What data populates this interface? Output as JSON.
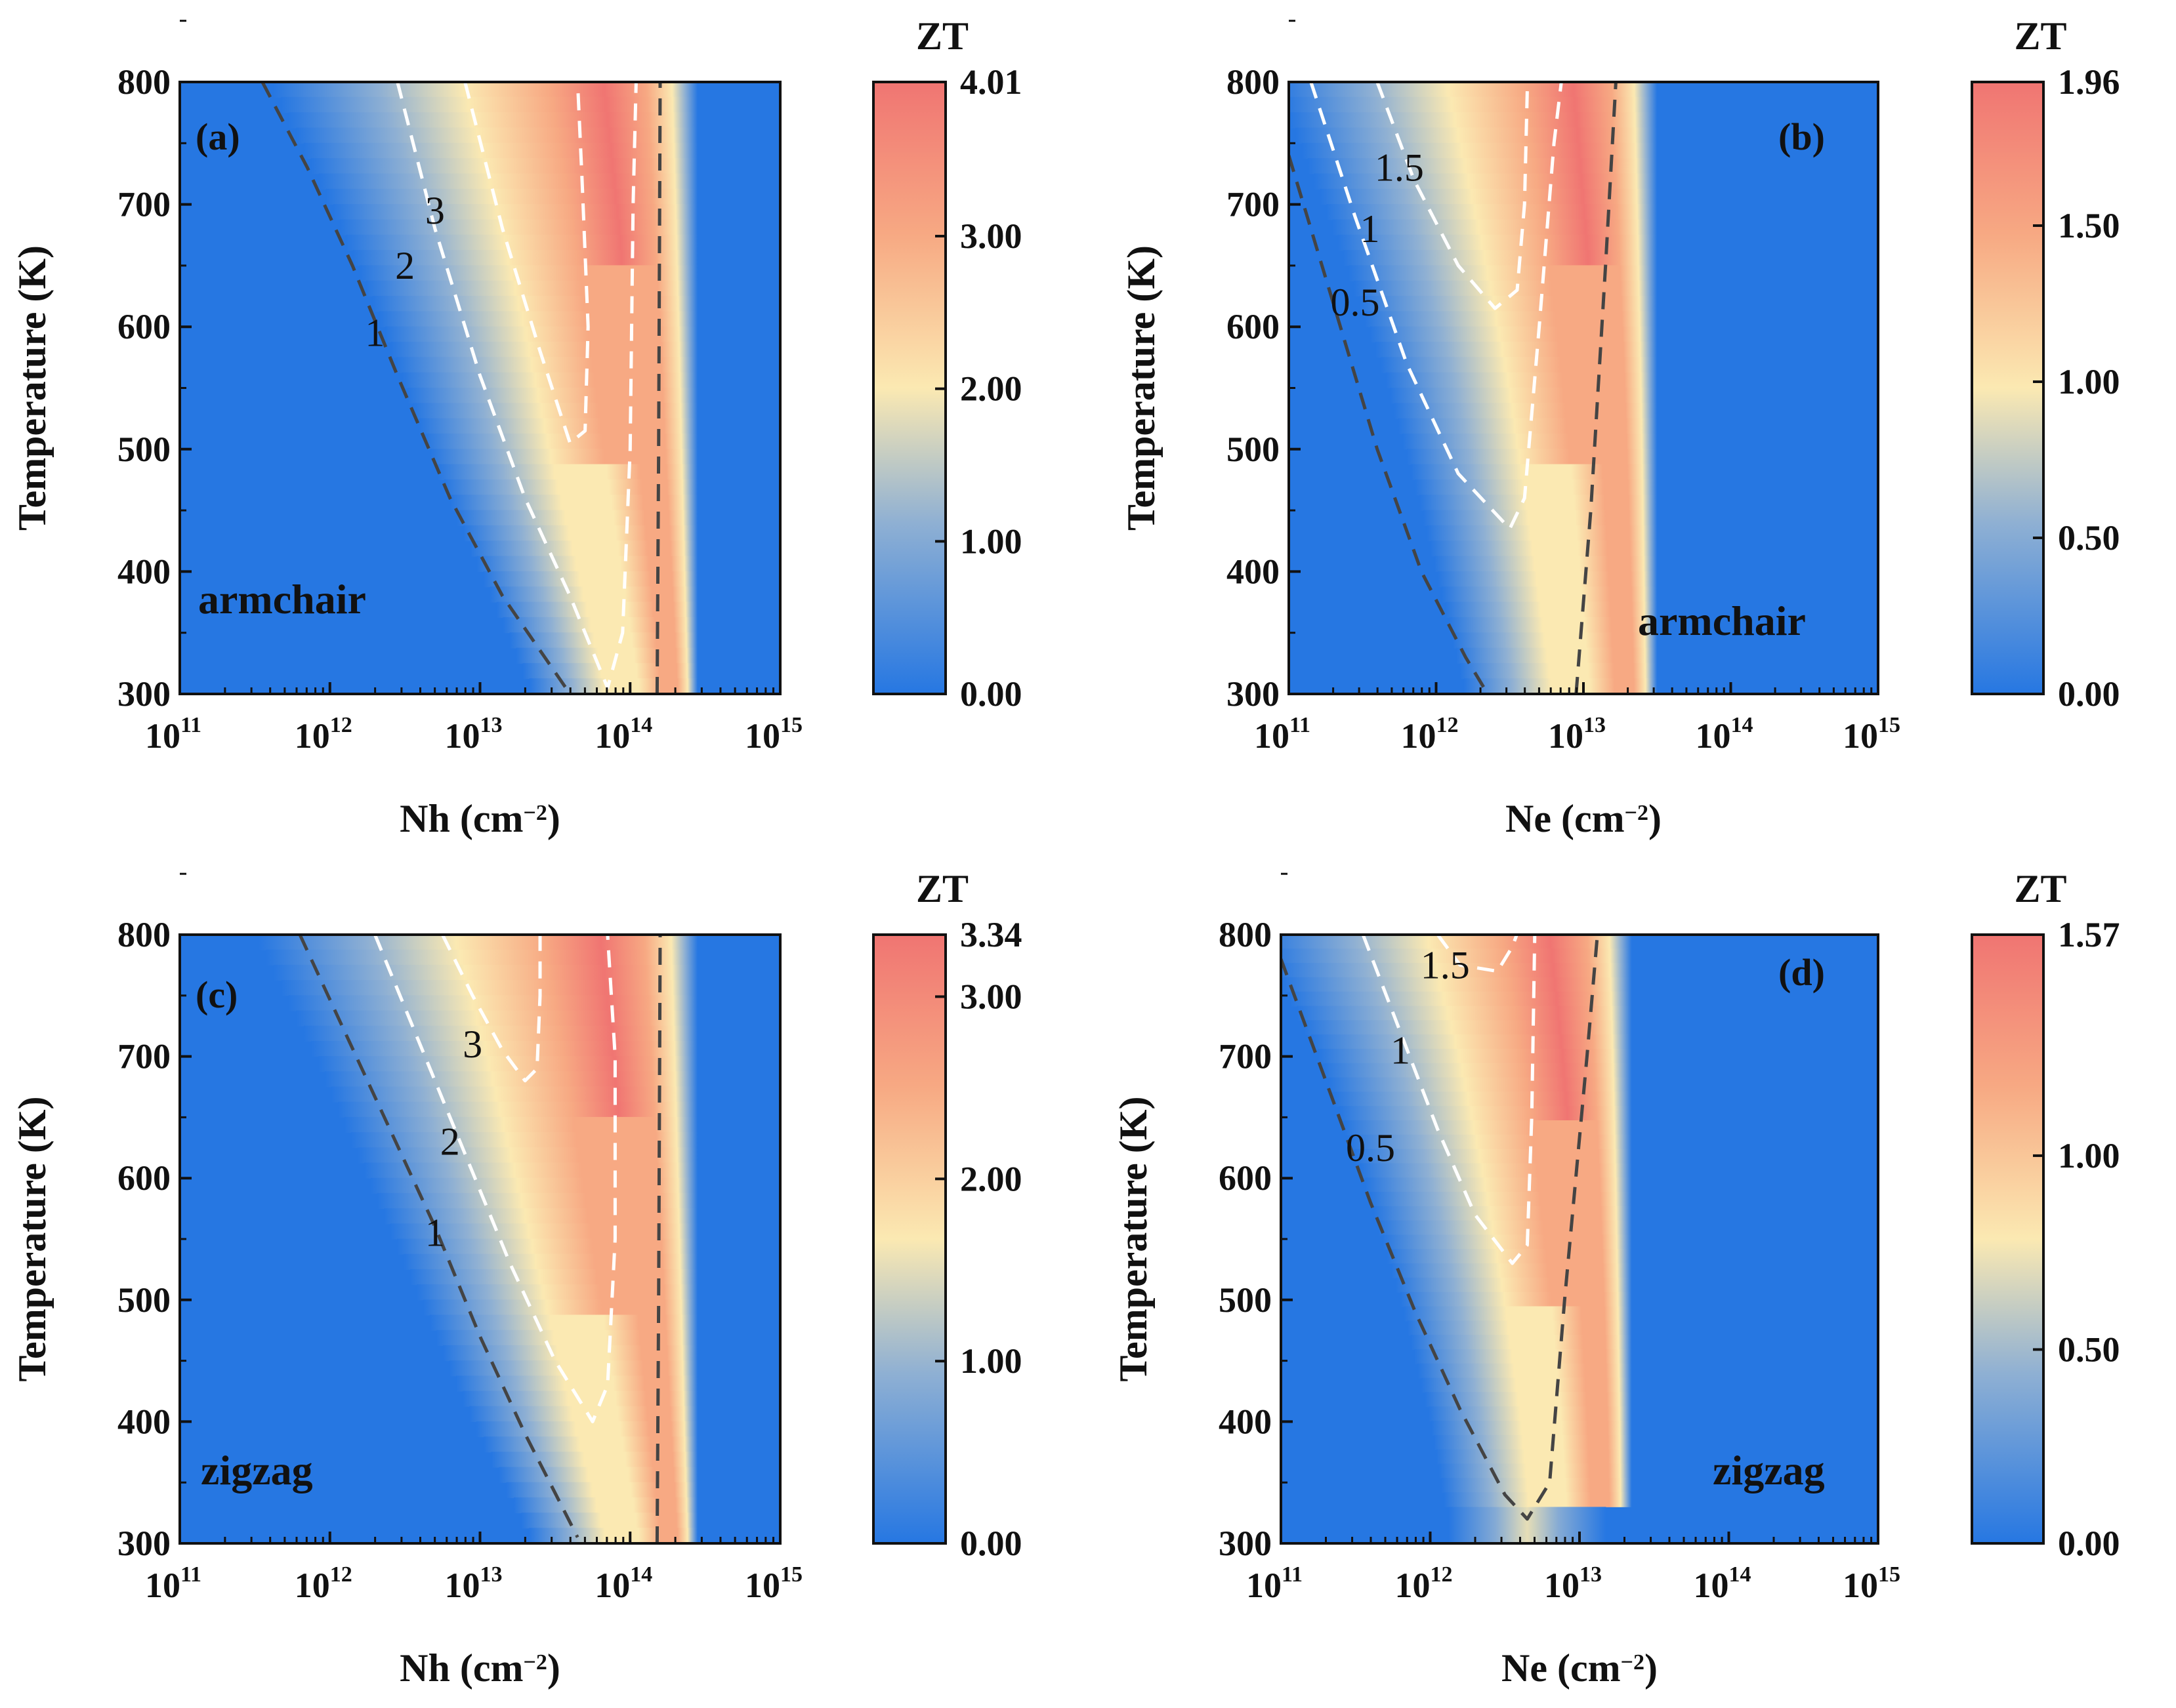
{
  "colors": {
    "low": "#2677e2",
    "low_mid": "#8fb0d3",
    "mid": "#fbe9b2",
    "high_mid": "#f7a983",
    "high": "#f07572",
    "dashed_dark": "#444444",
    "dashed_light": "#ffffff"
  },
  "chart_data": [
    {
      "id": "a",
      "type": "heatmap",
      "panel_label": "(a)",
      "orientation": "armchair",
      "xlabel": "Nh (cm⁻²)",
      "xlabel_base": "Nh (cm",
      "xlabel_sup": "−2",
      "xlabel_close": ")",
      "ylabel": "Temperature (K)",
      "x_scale": "log",
      "xlim": [
        100000000000.0,
        1000000000000000.0
      ],
      "x_ticks": [
        {
          "base": "10",
          "exp": "11"
        },
        {
          "base": "10",
          "exp": "12"
        },
        {
          "base": "10",
          "exp": "13"
        },
        {
          "base": "10",
          "exp": "14"
        },
        {
          "base": "10",
          "exp": "15"
        }
      ],
      "ylim": [
        300,
        800
      ],
      "y_ticks": [
        "300",
        "400",
        "500",
        "600",
        "700",
        "800"
      ],
      "colorbar": {
        "title": "ZT",
        "min": 0,
        "max": 4.01,
        "tick_values": [
          0,
          1,
          2,
          3,
          4.01
        ],
        "tick_labels": [
          "0.00",
          "1.00",
          "2.00",
          "3.00",
          "4.01"
        ]
      },
      "zt_max": 4.01,
      "contours": [
        {
          "level": "1",
          "style": "dark",
          "points": [
            [
              11.55,
              800
            ],
            [
              11.85,
              730
            ],
            [
              12.15,
              650
            ],
            [
              12.45,
              560
            ],
            [
              12.8,
              460
            ],
            [
              13.15,
              380
            ],
            [
              13.6,
              300
            ]
          ]
        },
        {
          "level": "2",
          "style": "light",
          "points": [
            [
              12.45,
              800
            ],
            [
              12.7,
              680
            ],
            [
              13.0,
              560
            ],
            [
              13.3,
              460
            ],
            [
              13.6,
              380
            ],
            [
              13.85,
              305
            ],
            [
              13.95,
              350
            ],
            [
              14.0,
              500
            ],
            [
              14.02,
              700
            ],
            [
              14.04,
              800
            ]
          ]
        },
        {
          "level": "3",
          "style": "light",
          "points": [
            [
              12.9,
              800
            ],
            [
              13.15,
              680
            ],
            [
              13.4,
              580
            ],
            [
              13.6,
              505
            ],
            [
              13.7,
              515
            ],
            [
              13.72,
              600
            ],
            [
              13.68,
              720
            ],
            [
              13.65,
              800
            ]
          ]
        },
        {
          "level": "",
          "style": "dark",
          "points": [
            [
              14.18,
              300
            ],
            [
              14.19,
              500
            ],
            [
              14.2,
              800
            ]
          ]
        }
      ],
      "contour_labels": [
        {
          "text": "1",
          "x": 12.3,
          "y": 595
        },
        {
          "text": "2",
          "x": 12.5,
          "y": 650
        },
        {
          "text": "3",
          "x": 12.7,
          "y": 695
        }
      ],
      "ridge": [
        [
          12.15,
          800
        ],
        [
          12.55,
          700
        ],
        [
          12.9,
          600
        ],
        [
          13.2,
          500
        ],
        [
          13.55,
          400
        ],
        [
          13.9,
          300
        ]
      ],
      "ridge_right": 14.1
    },
    {
      "id": "b",
      "type": "heatmap",
      "panel_label": "(b)",
      "orientation": "armchair",
      "xlabel": "Ne (cm⁻²)",
      "xlabel_base": "Ne (cm",
      "xlabel_sup": "−2",
      "xlabel_close": ")",
      "ylabel": "Temperature (K)",
      "x_scale": "log",
      "xlim": [
        100000000000.0,
        1000000000000000.0
      ],
      "x_ticks": [
        {
          "base": "10",
          "exp": "11"
        },
        {
          "base": "10",
          "exp": "12"
        },
        {
          "base": "10",
          "exp": "13"
        },
        {
          "base": "10",
          "exp": "14"
        },
        {
          "base": "10",
          "exp": "15"
        }
      ],
      "ylim": [
        300,
        800
      ],
      "y_ticks": [
        "300",
        "400",
        "500",
        "600",
        "700",
        "800"
      ],
      "colorbar": {
        "title": "ZT",
        "min": 0,
        "max": 1.96,
        "tick_values": [
          0,
          0.5,
          1,
          1.5,
          1.96
        ],
        "tick_labels": [
          "0.00",
          "0.50",
          "1.00",
          "1.50",
          "1.96"
        ]
      },
      "zt_max": 1.96,
      "contours": [
        {
          "level": "0.5",
          "style": "dark",
          "points": [
            [
              11.0,
              740
            ],
            [
              11.3,
              620
            ],
            [
              11.6,
              500
            ],
            [
              11.9,
              400
            ],
            [
              12.2,
              330
            ],
            [
              12.35,
              300
            ]
          ]
        },
        {
          "level": "1",
          "style": "light",
          "points": [
            [
              11.15,
              800
            ],
            [
              11.45,
              690
            ],
            [
              11.8,
              570
            ],
            [
              12.15,
              480
            ],
            [
              12.5,
              435
            ],
            [
              12.6,
              460
            ],
            [
              12.7,
              600
            ],
            [
              12.8,
              750
            ],
            [
              12.85,
              800
            ]
          ]
        },
        {
          "level": "1.5",
          "style": "light",
          "points": [
            [
              11.6,
              800
            ],
            [
              11.85,
              720
            ],
            [
              12.15,
              650
            ],
            [
              12.4,
              615
            ],
            [
              12.55,
              630
            ],
            [
              12.6,
              700
            ],
            [
              12.62,
              800
            ]
          ]
        },
        {
          "level": "",
          "style": "dark",
          "points": [
            [
              12.95,
              300
            ],
            [
              13.05,
              450
            ],
            [
              13.15,
              650
            ],
            [
              13.22,
              800
            ]
          ]
        }
      ],
      "contour_labels": [
        {
          "text": "1.5",
          "x": 11.75,
          "y": 730
        },
        {
          "text": "1",
          "x": 11.55,
          "y": 680
        },
        {
          "text": "0.5",
          "x": 11.45,
          "y": 620
        }
      ],
      "ridge": [
        [
          11.45,
          800
        ],
        [
          11.85,
          680
        ],
        [
          12.2,
          560
        ],
        [
          12.45,
          450
        ],
        [
          12.65,
          350
        ],
        [
          12.75,
          300
        ]
      ],
      "ridge_right": 13.15
    },
    {
      "id": "c",
      "type": "heatmap",
      "panel_label": "(c)",
      "orientation": "zigzag",
      "xlabel": "Nh (cm⁻²)",
      "xlabel_base": "Nh (cm",
      "xlabel_sup": "−2",
      "xlabel_close": ")",
      "ylabel": "Temperature (K)",
      "x_scale": "log",
      "xlim": [
        100000000000.0,
        1000000000000000.0
      ],
      "x_ticks": [
        {
          "base": "10",
          "exp": "11"
        },
        {
          "base": "10",
          "exp": "12"
        },
        {
          "base": "10",
          "exp": "13"
        },
        {
          "base": "10",
          "exp": "14"
        },
        {
          "base": "10",
          "exp": "15"
        }
      ],
      "ylim": [
        300,
        800
      ],
      "y_ticks": [
        "300",
        "400",
        "500",
        "600",
        "700",
        "800"
      ],
      "colorbar": {
        "title": "ZT",
        "min": 0,
        "max": 3.34,
        "tick_values": [
          0,
          1,
          2,
          3,
          3.34
        ],
        "tick_labels": [
          "0.00",
          "1.00",
          "2.00",
          "3.00",
          "3.34"
        ]
      },
      "zt_max": 3.34,
      "contours": [
        {
          "level": "1",
          "style": "dark",
          "points": [
            [
              11.8,
              800
            ],
            [
              12.1,
              720
            ],
            [
              12.4,
              640
            ],
            [
              12.7,
              560
            ],
            [
              13.0,
              470
            ],
            [
              13.3,
              390
            ],
            [
              13.65,
              305
            ]
          ]
        },
        {
          "level": "2",
          "style": "light",
          "points": [
            [
              12.3,
              800
            ],
            [
              12.6,
              710
            ],
            [
              12.9,
              620
            ],
            [
              13.2,
              530
            ],
            [
              13.5,
              450
            ],
            [
              13.75,
              400
            ],
            [
              13.85,
              430
            ],
            [
              13.9,
              550
            ],
            [
              13.9,
              700
            ],
            [
              13.85,
              800
            ]
          ]
        },
        {
          "level": "3",
          "style": "light",
          "points": [
            [
              12.75,
              800
            ],
            [
              12.95,
              750
            ],
            [
              13.15,
              705
            ],
            [
              13.3,
              680
            ],
            [
              13.38,
              690
            ],
            [
              13.4,
              750
            ],
            [
              13.4,
              800
            ]
          ]
        },
        {
          "level": "",
          "style": "dark",
          "points": [
            [
              14.18,
              300
            ],
            [
              14.19,
              500
            ],
            [
              14.2,
              800
            ]
          ]
        }
      ],
      "contour_labels": [
        {
          "text": "3",
          "x": 12.95,
          "y": 710
        },
        {
          "text": "2",
          "x": 12.8,
          "y": 630
        },
        {
          "text": "1",
          "x": 12.7,
          "y": 555
        }
      ],
      "ridge": [
        [
          12.05,
          800
        ],
        [
          12.45,
          700
        ],
        [
          12.8,
          600
        ],
        [
          13.15,
          500
        ],
        [
          13.5,
          400
        ],
        [
          13.9,
          300
        ]
      ],
      "ridge_right": 14.1
    },
    {
      "id": "d",
      "type": "heatmap",
      "panel_label": "(d)",
      "orientation": "zigzag",
      "xlabel": "Ne (cm⁻²)",
      "xlabel_base": "Ne (cm",
      "xlabel_sup": "−2",
      "xlabel_close": ")",
      "ylabel": "Temperature (K)",
      "x_scale": "log",
      "xlim": [
        100000000000.0,
        1000000000000000.0
      ],
      "x_ticks": [
        {
          "base": "10",
          "exp": "11"
        },
        {
          "base": "10",
          "exp": "12"
        },
        {
          "base": "10",
          "exp": "13"
        },
        {
          "base": "10",
          "exp": "14"
        },
        {
          "base": "10",
          "exp": "15"
        }
      ],
      "ylim": [
        300,
        800
      ],
      "y_ticks": [
        "300",
        "400",
        "500",
        "600",
        "700",
        "800"
      ],
      "colorbar": {
        "title": "ZT",
        "min": 0,
        "max": 1.57,
        "tick_values": [
          0,
          0.5,
          1,
          1.57
        ],
        "tick_labels": [
          "0.00",
          "0.50",
          "1.00",
          "1.57"
        ]
      },
      "zt_max": 1.57,
      "contours": [
        {
          "level": "0.5",
          "style": "dark",
          "points": [
            [
              11.0,
              780
            ],
            [
              11.3,
              680
            ],
            [
              11.6,
              580
            ],
            [
              11.9,
              490
            ],
            [
              12.2,
              410
            ],
            [
              12.5,
              340
            ],
            [
              12.65,
              320
            ],
            [
              12.8,
              350
            ],
            [
              12.9,
              500
            ],
            [
              13.05,
              700
            ],
            [
              13.12,
              800
            ]
          ]
        },
        {
          "level": "1",
          "style": "light",
          "points": [
            [
              11.55,
              800
            ],
            [
              11.8,
              720
            ],
            [
              12.05,
              640
            ],
            [
              12.3,
              570
            ],
            [
              12.55,
              530
            ],
            [
              12.65,
              545
            ],
            [
              12.68,
              650
            ],
            [
              12.7,
              800
            ]
          ]
        },
        {
          "level": "1.5",
          "style": "light",
          "points": [
            [
              12.05,
              800
            ],
            [
              12.2,
              775
            ],
            [
              12.45,
              770
            ],
            [
              12.55,
              790
            ],
            [
              12.58,
              800
            ]
          ]
        }
      ],
      "contour_labels": [
        {
          "text": "1.5",
          "x": 12.1,
          "y": 775
        },
        {
          "text": "1",
          "x": 11.8,
          "y": 705
        },
        {
          "text": "0.5",
          "x": 11.6,
          "y": 625
        }
      ],
      "ridge": [
        [
          11.4,
          800
        ],
        [
          11.8,
          700
        ],
        [
          12.1,
          600
        ],
        [
          12.35,
          500
        ],
        [
          12.55,
          400
        ],
        [
          12.65,
          330
        ]
      ],
      "ridge_right": 13.0
    }
  ]
}
